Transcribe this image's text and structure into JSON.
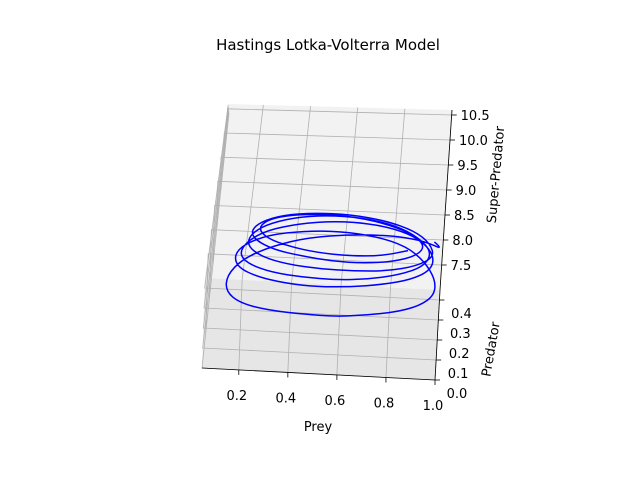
{
  "chart_data": {
    "type": "line",
    "projection": "3d",
    "title": "Hastings Lotka-Volterra Model",
    "xlabel": "Prey",
    "ylabel": "Predator",
    "zlabel": "Super-Predator",
    "xticks": [
      "0.2",
      "0.4",
      "0.6",
      "0.8",
      "1.0"
    ],
    "yticks": [
      "0.0",
      "0.1",
      "0.2",
      "0.3",
      "0.4"
    ],
    "zticks": [
      "7.5",
      "8.0",
      "8.5",
      "9.0",
      "9.5",
      "10.0",
      "10.5"
    ],
    "xlim": [
      0.05,
      1.0
    ],
    "ylim": [
      0.0,
      0.45
    ],
    "zlim": [
      7.0,
      10.6
    ],
    "grid": true,
    "series_color": "#0000ff",
    "pane_color": "#f2f2f2",
    "grid_color": "#b0b0b0",
    "series": [
      {
        "x": [
          0.97,
          0.99,
          0.99,
          0.97,
          0.9,
          0.78,
          0.62,
          0.45,
          0.3,
          0.18,
          0.12,
          0.12,
          0.18,
          0.3,
          0.45,
          0.58,
          0.7,
          0.82,
          0.92,
          0.98,
          0.98,
          0.93,
          0.85,
          0.72,
          0.57,
          0.42,
          0.28,
          0.18,
          0.14,
          0.16,
          0.24,
          0.36,
          0.5,
          0.63,
          0.76,
          0.88,
          0.96,
          0.97,
          0.92,
          0.83,
          0.7,
          0.55,
          0.4,
          0.27,
          0.19,
          0.16,
          0.2,
          0.3,
          0.43,
          0.57,
          0.7,
          0.83,
          0.93,
          0.96,
          0.9,
          0.8,
          0.66,
          0.51,
          0.37,
          0.26,
          0.2,
          0.19,
          0.25,
          0.36,
          0.5,
          0.64,
          0.78,
          0.9,
          0.97,
          0.95,
          0.88,
          0.76,
          0.61,
          0.46,
          0.33,
          0.24,
          0.2,
          0.22,
          0.3,
          0.42,
          0.55,
          0.68,
          0.8,
          0.9,
          0.93,
          0.86,
          0.74,
          0.6,
          0.46,
          0.34,
          0.26,
          0.23,
          0.27,
          0.36,
          0.48,
          0.62,
          0.75,
          0.86
        ],
        "y": [
          0.03,
          0.06,
          0.12,
          0.2,
          0.28,
          0.33,
          0.35,
          0.34,
          0.3,
          0.24,
          0.17,
          0.11,
          0.07,
          0.05,
          0.04,
          0.03,
          0.03,
          0.03,
          0.04,
          0.07,
          0.13,
          0.21,
          0.28,
          0.32,
          0.33,
          0.31,
          0.27,
          0.21,
          0.15,
          0.1,
          0.07,
          0.05,
          0.04,
          0.04,
          0.04,
          0.05,
          0.08,
          0.14,
          0.21,
          0.27,
          0.31,
          0.32,
          0.3,
          0.26,
          0.2,
          0.14,
          0.1,
          0.07,
          0.06,
          0.05,
          0.05,
          0.06,
          0.09,
          0.15,
          0.22,
          0.28,
          0.31,
          0.31,
          0.28,
          0.23,
          0.18,
          0.13,
          0.09,
          0.07,
          0.06,
          0.06,
          0.06,
          0.08,
          0.12,
          0.18,
          0.24,
          0.28,
          0.3,
          0.29,
          0.26,
          0.21,
          0.16,
          0.12,
          0.09,
          0.08,
          0.07,
          0.07,
          0.08,
          0.11,
          0.16,
          0.22,
          0.26,
          0.28,
          0.27,
          0.24,
          0.2,
          0.15,
          0.11,
          0.09,
          0.08,
          0.08,
          0.09,
          0.12
        ],
        "z": [
          8.85,
          8.75,
          8.62,
          8.5,
          8.42,
          8.36,
          8.3,
          8.24,
          8.16,
          8.06,
          7.95,
          7.85,
          7.78,
          7.74,
          7.73,
          7.74,
          7.78,
          7.84,
          7.92,
          8.02,
          8.12,
          8.22,
          8.3,
          8.36,
          8.4,
          8.42,
          8.42,
          8.38,
          8.32,
          8.24,
          8.18,
          8.14,
          8.13,
          8.15,
          8.2,
          8.27,
          8.36,
          8.45,
          8.53,
          8.58,
          8.6,
          8.6,
          8.57,
          8.52,
          8.45,
          8.37,
          8.3,
          8.25,
          8.22,
          8.22,
          8.25,
          8.31,
          8.39,
          8.49,
          8.58,
          8.65,
          8.7,
          8.72,
          8.71,
          8.67,
          8.6,
          8.52,
          8.44,
          8.38,
          8.35,
          8.34,
          8.36,
          8.41,
          8.48,
          8.57,
          8.65,
          8.72,
          8.77,
          8.79,
          8.79,
          8.76,
          8.7,
          8.63,
          8.55,
          8.49,
          8.45,
          8.44,
          8.46,
          8.51,
          8.58,
          8.66,
          8.73,
          8.78,
          8.81,
          8.82,
          8.8,
          8.75,
          8.68,
          8.61,
          8.55,
          8.52,
          8.52,
          8.56
        ]
      }
    ]
  }
}
